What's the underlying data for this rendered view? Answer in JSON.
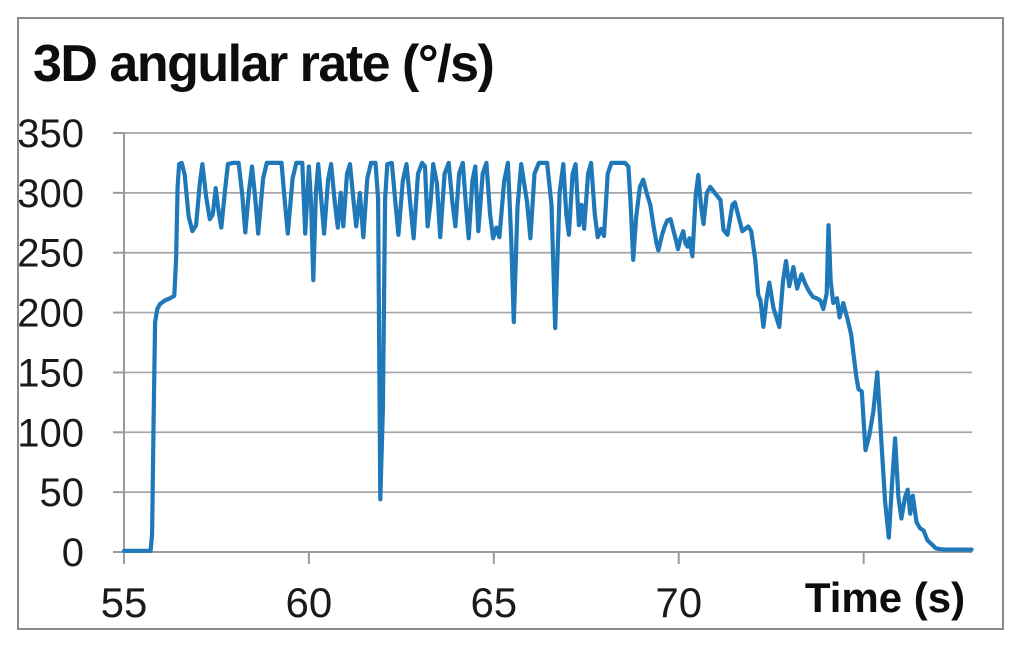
{
  "title": "3D angular rate (°/s)",
  "x_axis_label": "Time (s)",
  "colors": {
    "line": "#1f78b8",
    "grid": "#a6a6a6",
    "axis": "#9b9b9b",
    "tick_text": "#1a1a1a",
    "frame": "#8a8a8a"
  },
  "chart_data": {
    "type": "line",
    "title": "3D angular rate (°/s)",
    "xlabel": "Time (s)",
    "ylabel": "3D angular rate (°/s)",
    "xlim": [
      55,
      77.93
    ],
    "ylim": [
      0,
      350
    ],
    "x_ticks": [
      55,
      60,
      65,
      70,
      75
    ],
    "x_tick_labels": [
      "55",
      "60",
      "65",
      "70",
      ""
    ],
    "y_ticks": [
      0,
      50,
      100,
      150,
      200,
      250,
      300,
      350
    ],
    "y_tick_labels": [
      "0",
      "50",
      "100",
      "150",
      "200",
      "250",
      "300",
      "350"
    ],
    "grid": "horizontal",
    "legend": "none",
    "series": [
      {
        "name": "3D angular rate",
        "color": "#1f78b8",
        "points": [
          [
            55.0,
            1
          ],
          [
            55.35,
            1
          ],
          [
            55.72,
            1
          ],
          [
            55.76,
            15
          ],
          [
            55.8,
            110
          ],
          [
            55.84,
            192
          ],
          [
            55.9,
            203
          ],
          [
            55.97,
            207
          ],
          [
            56.1,
            210
          ],
          [
            56.25,
            212
          ],
          [
            56.36,
            214
          ],
          [
            56.41,
            245
          ],
          [
            56.45,
            305
          ],
          [
            56.49,
            324
          ],
          [
            56.56,
            325
          ],
          [
            56.64,
            315
          ],
          [
            56.75,
            280
          ],
          [
            56.85,
            268
          ],
          [
            56.95,
            273
          ],
          [
            57.05,
            308
          ],
          [
            57.12,
            324
          ],
          [
            57.22,
            297
          ],
          [
            57.32,
            278
          ],
          [
            57.4,
            282
          ],
          [
            57.48,
            304
          ],
          [
            57.56,
            284
          ],
          [
            57.63,
            271
          ],
          [
            57.73,
            302
          ],
          [
            57.81,
            324
          ],
          [
            57.95,
            325
          ],
          [
            58.1,
            325
          ],
          [
            58.2,
            298
          ],
          [
            58.28,
            267
          ],
          [
            58.38,
            302
          ],
          [
            58.46,
            322
          ],
          [
            58.55,
            295
          ],
          [
            58.63,
            266
          ],
          [
            58.76,
            312
          ],
          [
            58.86,
            325
          ],
          [
            59.05,
            325
          ],
          [
            59.26,
            325
          ],
          [
            59.35,
            292
          ],
          [
            59.43,
            266
          ],
          [
            59.56,
            312
          ],
          [
            59.66,
            325
          ],
          [
            59.82,
            325
          ],
          [
            59.9,
            266
          ],
          [
            60.0,
            322
          ],
          [
            60.06,
            291
          ],
          [
            60.12,
            227
          ],
          [
            60.19,
            300
          ],
          [
            60.25,
            324
          ],
          [
            60.34,
            292
          ],
          [
            60.41,
            266
          ],
          [
            60.52,
            311
          ],
          [
            60.6,
            324
          ],
          [
            60.7,
            292
          ],
          [
            60.78,
            271
          ],
          [
            60.86,
            300
          ],
          [
            60.93,
            272
          ],
          [
            61.03,
            316
          ],
          [
            61.11,
            324
          ],
          [
            61.21,
            292
          ],
          [
            61.28,
            272
          ],
          [
            61.38,
            300
          ],
          [
            61.47,
            263
          ],
          [
            61.58,
            312
          ],
          [
            61.68,
            325
          ],
          [
            61.8,
            325
          ],
          [
            61.87,
            295
          ],
          [
            61.93,
            44
          ],
          [
            62.0,
            120
          ],
          [
            62.06,
            295
          ],
          [
            62.12,
            324
          ],
          [
            62.24,
            325
          ],
          [
            62.34,
            292
          ],
          [
            62.42,
            265
          ],
          [
            62.54,
            310
          ],
          [
            62.64,
            324
          ],
          [
            62.74,
            292
          ],
          [
            62.83,
            262
          ],
          [
            62.95,
            316
          ],
          [
            63.06,
            325
          ],
          [
            63.14,
            322
          ],
          [
            63.21,
            272
          ],
          [
            63.29,
            292
          ],
          [
            63.36,
            324
          ],
          [
            63.46,
            308
          ],
          [
            63.55,
            263
          ],
          [
            63.67,
            316
          ],
          [
            63.78,
            325
          ],
          [
            63.88,
            292
          ],
          [
            63.96,
            272
          ],
          [
            64.06,
            316
          ],
          [
            64.16,
            325
          ],
          [
            64.25,
            288
          ],
          [
            64.32,
            262
          ],
          [
            64.42,
            310
          ],
          [
            64.5,
            322
          ],
          [
            64.58,
            268
          ],
          [
            64.7,
            316
          ],
          [
            64.8,
            325
          ],
          [
            64.9,
            282
          ],
          [
            64.98,
            262
          ],
          [
            65.07,
            271
          ],
          [
            65.15,
            263
          ],
          [
            65.28,
            310
          ],
          [
            65.38,
            325
          ],
          [
            65.47,
            262
          ],
          [
            65.54,
            192
          ],
          [
            65.64,
            288
          ],
          [
            65.74,
            324
          ],
          [
            65.9,
            292
          ],
          [
            65.99,
            262
          ],
          [
            66.1,
            316
          ],
          [
            66.22,
            325
          ],
          [
            66.44,
            325
          ],
          [
            66.56,
            290
          ],
          [
            66.66,
            187
          ],
          [
            66.78,
            300
          ],
          [
            66.88,
            324
          ],
          [
            66.96,
            282
          ],
          [
            67.03,
            265
          ],
          [
            67.13,
            316
          ],
          [
            67.21,
            324
          ],
          [
            67.3,
            273
          ],
          [
            67.37,
            290
          ],
          [
            67.44,
            270
          ],
          [
            67.55,
            316
          ],
          [
            67.63,
            325
          ],
          [
            67.73,
            282
          ],
          [
            67.81,
            263
          ],
          [
            67.9,
            270
          ],
          [
            67.98,
            264
          ],
          [
            68.08,
            316
          ],
          [
            68.18,
            325
          ],
          [
            68.4,
            325
          ],
          [
            68.55,
            325
          ],
          [
            68.64,
            322
          ],
          [
            68.7,
            290
          ],
          [
            68.77,
            244
          ],
          [
            68.85,
            280
          ],
          [
            68.95,
            305
          ],
          [
            69.04,
            311
          ],
          [
            69.15,
            298
          ],
          [
            69.23,
            290
          ],
          [
            69.32,
            272
          ],
          [
            69.4,
            258
          ],
          [
            69.45,
            252
          ],
          [
            69.55,
            265
          ],
          [
            69.62,
            272
          ],
          [
            69.69,
            277
          ],
          [
            69.78,
            278
          ],
          [
            69.86,
            268
          ],
          [
            69.93,
            260
          ],
          [
            69.98,
            253
          ],
          [
            70.05,
            262
          ],
          [
            70.12,
            268
          ],
          [
            70.18,
            258
          ],
          [
            70.24,
            255
          ],
          [
            70.29,
            262
          ],
          [
            70.37,
            247
          ],
          [
            70.46,
            298
          ],
          [
            70.53,
            315
          ],
          [
            70.6,
            290
          ],
          [
            70.67,
            274
          ],
          [
            70.76,
            300
          ],
          [
            70.85,
            305
          ],
          [
            70.95,
            301
          ],
          [
            71.05,
            297
          ],
          [
            71.13,
            294
          ],
          [
            71.21,
            269
          ],
          [
            71.32,
            265
          ],
          [
            71.45,
            290
          ],
          [
            71.52,
            292
          ],
          [
            71.62,
            280
          ],
          [
            71.72,
            268
          ],
          [
            71.8,
            270
          ],
          [
            71.88,
            272
          ],
          [
            71.96,
            268
          ],
          [
            72.07,
            244
          ],
          [
            72.15,
            215
          ],
          [
            72.21,
            210
          ],
          [
            72.29,
            188
          ],
          [
            72.38,
            212
          ],
          [
            72.45,
            225
          ],
          [
            72.56,
            204
          ],
          [
            72.64,
            196
          ],
          [
            72.72,
            188
          ],
          [
            72.82,
            226
          ],
          [
            72.9,
            243
          ],
          [
            72.99,
            222
          ],
          [
            73.1,
            238
          ],
          [
            73.2,
            220
          ],
          [
            73.32,
            232
          ],
          [
            73.42,
            224
          ],
          [
            73.52,
            218
          ],
          [
            73.63,
            213
          ],
          [
            73.73,
            212
          ],
          [
            73.83,
            210
          ],
          [
            73.91,
            203
          ],
          [
            74.0,
            216
          ],
          [
            74.05,
            273
          ],
          [
            74.11,
            226
          ],
          [
            74.18,
            208
          ],
          [
            74.28,
            212
          ],
          [
            74.35,
            196
          ],
          [
            74.45,
            208
          ],
          [
            74.56,
            195
          ],
          [
            74.66,
            182
          ],
          [
            74.73,
            164
          ],
          [
            74.8,
            147
          ],
          [
            74.86,
            136
          ],
          [
            74.95,
            134
          ],
          [
            75.05,
            85
          ],
          [
            75.15,
            97
          ],
          [
            75.26,
            117
          ],
          [
            75.37,
            150
          ],
          [
            75.48,
            92
          ],
          [
            75.58,
            42
          ],
          [
            75.68,
            12
          ],
          [
            75.77,
            58
          ],
          [
            75.85,
            95
          ],
          [
            75.94,
            46
          ],
          [
            76.02,
            28
          ],
          [
            76.12,
            46
          ],
          [
            76.19,
            52
          ],
          [
            76.26,
            32
          ],
          [
            76.33,
            47
          ],
          [
            76.43,
            25
          ],
          [
            76.52,
            20
          ],
          [
            76.62,
            18
          ],
          [
            76.72,
            10
          ],
          [
            76.82,
            7
          ],
          [
            76.96,
            3
          ],
          [
            77.15,
            2
          ],
          [
            77.5,
            2
          ],
          [
            77.92,
            2
          ]
        ]
      }
    ]
  }
}
